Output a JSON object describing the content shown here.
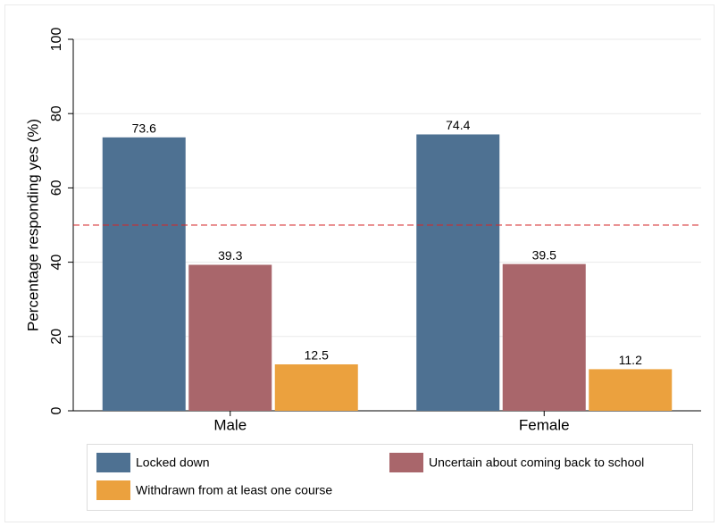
{
  "chart_data": {
    "type": "bar",
    "y_label": "Percentage responding yes (%)",
    "categories": [
      "Male",
      "Female"
    ],
    "series": [
      {
        "name": "Locked down",
        "color": "#4e7192",
        "values": [
          73.6,
          74.4
        ]
      },
      {
        "name": "Uncertain about coming back to school",
        "color": "#a9666b",
        "values": [
          39.3,
          39.5
        ]
      },
      {
        "name": "Withdrawn from at least one course",
        "color": "#eba13e",
        "values": [
          12.5,
          11.2
        ]
      }
    ],
    "ylim": [
      0,
      100
    ],
    "yticks": [
      0,
      20,
      40,
      60,
      80,
      100
    ],
    "grid": true,
    "reference_line": {
      "value": 50,
      "color": "#d62728"
    },
    "legend": "bottom"
  }
}
